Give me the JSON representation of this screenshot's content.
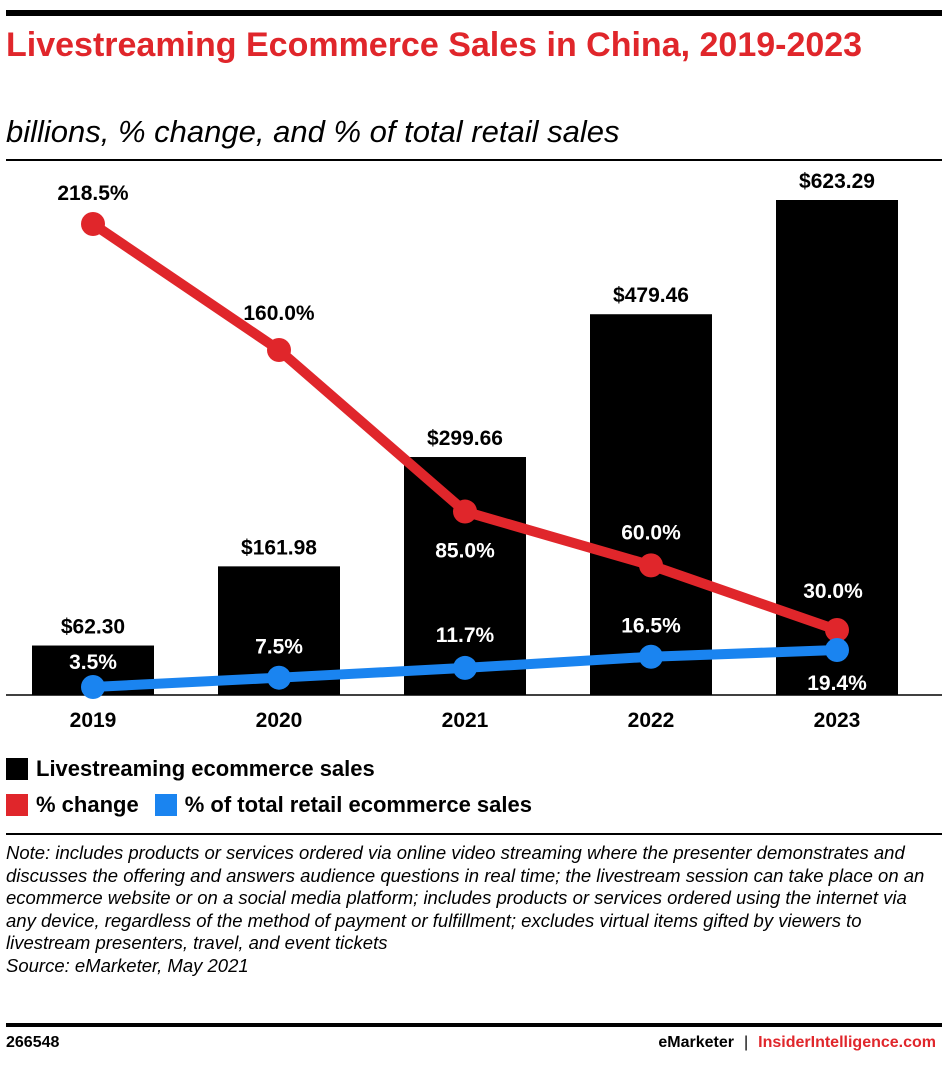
{
  "header": {
    "title": "Livestreaming Ecommerce Sales in China, 2019-2023",
    "subtitle": "billions, % change, and % of total retail sales"
  },
  "colors": {
    "bar": "#000000",
    "change_line": "#e0262b",
    "share_line": "#1a84f0",
    "title": "#e0262b"
  },
  "chart_data": {
    "type": "bar",
    "categories": [
      "2019",
      "2020",
      "2021",
      "2022",
      "2023"
    ],
    "series": [
      {
        "name": "Livestreaming ecommerce sales",
        "type": "bar",
        "values": [
          62.3,
          161.98,
          299.66,
          479.46,
          623.29
        ],
        "labels": [
          "$62.30",
          "$161.98",
          "$299.66",
          "$479.46",
          "$623.29"
        ]
      },
      {
        "name": "% change",
        "type": "line",
        "values": [
          218.5,
          160.0,
          85.0,
          60.0,
          30.0
        ],
        "labels": [
          "218.5%",
          "160.0%",
          "85.0%",
          "60.0%",
          "30.0%"
        ]
      },
      {
        "name": "% of total retail ecommerce sales",
        "type": "line",
        "values": [
          3.5,
          7.5,
          11.7,
          16.5,
          19.4
        ],
        "labels": [
          "3.5%",
          "7.5%",
          "11.7%",
          "16.5%",
          "19.4%"
        ]
      }
    ],
    "legend_placement": "bottom",
    "grid": false
  },
  "legend": {
    "bar_label": "Livestreaming ecommerce sales",
    "change_label": "% change",
    "share_label": "% of total retail ecommerce sales"
  },
  "note": "Note: includes products or services ordered via online video streaming where the presenter demonstrates and discusses the offering and answers audience questions in real time; the livestream session can take place on an ecommerce website or on a social media platform; includes products or services ordered using the internet via any device, regardless of the method of payment or fulfillment; excludes virtual items gifted by viewers to livestream presenters, travel, and event tickets",
  "source": "Source: eMarketer, May 2021",
  "footer": {
    "chart_id": "266548",
    "brand_left": "eMarketer",
    "separator": "|",
    "brand_right": "InsiderIntelligence.com"
  }
}
